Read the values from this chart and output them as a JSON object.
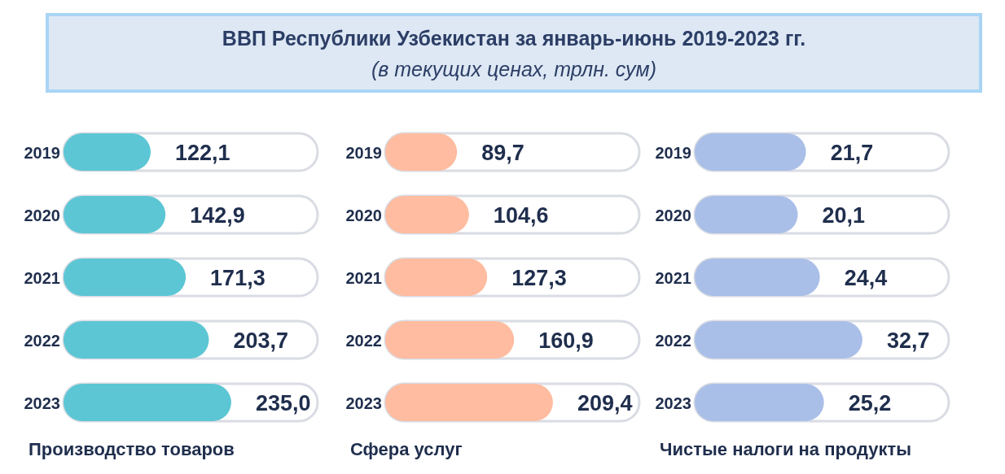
{
  "chart_data": [
    {
      "type": "other",
      "title": "ВВП Республики Узбекистан за январь-июнь 2019-2023 гг.",
      "subtitle": "(в текущих ценах, трлн. сум)"
    },
    {
      "type": "bar",
      "orientation": "horizontal",
      "xlabel": "Производство товаров",
      "categories": [
        "2019",
        "2020",
        "2021",
        "2022",
        "2023"
      ],
      "values": [
        122.1,
        142.9,
        171.3,
        203.7,
        235.0
      ],
      "value_labels": [
        "122,1",
        "142,9",
        "171,3",
        "203,7",
        "235,0"
      ],
      "color": "#5cc6d4"
    },
    {
      "type": "bar",
      "orientation": "horizontal",
      "xlabel": "Сфера услуг",
      "categories": [
        "2019",
        "2020",
        "2021",
        "2022",
        "2023"
      ],
      "values": [
        89.7,
        104.6,
        127.3,
        160.9,
        209.4
      ],
      "value_labels": [
        "89,7",
        "104,6",
        "127,3",
        "160,9",
        "209,4"
      ],
      "color": "#ffbca0"
    },
    {
      "type": "bar",
      "orientation": "horizontal",
      "xlabel": "Чистые налоги на продукты",
      "categories": [
        "2019",
        "2020",
        "2021",
        "2022",
        "2023"
      ],
      "values": [
        21.7,
        20.1,
        24.4,
        32.7,
        25.2
      ],
      "value_labels": [
        "21,7",
        "20,1",
        "24,4",
        "32,7",
        "25,2"
      ],
      "color": "#aabfe8"
    }
  ]
}
